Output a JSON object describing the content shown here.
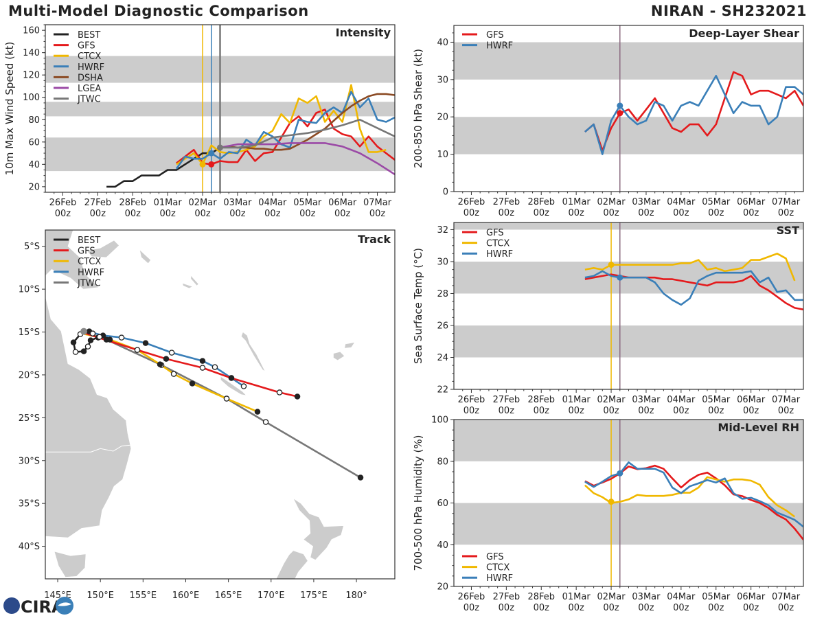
{
  "header": {
    "title": "Multi-Model Diagnostic Comparison",
    "storm": "NIRAN - SH232021"
  },
  "logo": "CIRA",
  "colors": {
    "BEST": "#222222",
    "GFS": "#e41a1c",
    "CTCX": "#f0b800",
    "HWRF": "#3a7fb8",
    "DSHA": "#8b4a23",
    "LGEA": "#9b4aa6",
    "JTWC": "#777777",
    "band": "#cccccc",
    "init": "#8a6a80"
  },
  "chart_data": [
    {
      "type": "line",
      "title": "Intensity",
      "ylabel": "10m Max Wind Speed (kt)",
      "ylim": [
        15,
        165
      ],
      "yticks": [
        20,
        40,
        60,
        80,
        100,
        120,
        140,
        160
      ],
      "xticks": [
        "26Feb 00z",
        "27Feb 00z",
        "28Feb 00z",
        "01Mar 00z",
        "02Mar 00z",
        "03Mar 00z",
        "04Mar 00z",
        "05Mar 00z",
        "06Mar 00z",
        "07Mar 00z"
      ],
      "shaded_bands": [
        [
          34,
          64
        ],
        [
          83,
          96
        ],
        [
          113,
          137
        ]
      ],
      "legend_placement": "top-left",
      "init_lines": [
        {
          "time": "02Mar 00z",
          "model": "CTCX"
        },
        {
          "time": "02Mar 06z",
          "model": "HWRF"
        },
        {
          "time": "02Mar 12z",
          "model": "JTWC"
        }
      ],
      "markers": [
        {
          "model": "CTCX",
          "time": "02Mar 00z",
          "value": 40
        },
        {
          "model": "GFS",
          "time": "02Mar 06z",
          "value": 40
        },
        {
          "model": "HWRF",
          "time": "02Mar 06z",
          "value": 50
        },
        {
          "model": "JTWC",
          "time": "02Mar 12z",
          "value": 55
        }
      ],
      "times": [
        "27Feb 06z",
        "27Feb 12z",
        "27Feb 18z",
        "28Feb 00z",
        "28Feb 06z",
        "28Feb 12z",
        "28Feb 18z",
        "01Mar 00z",
        "01Mar 06z",
        "01Mar 12z",
        "01Mar 18z",
        "02Mar 00z",
        "02Mar 06z",
        "02Mar 12z",
        "02Mar 18z",
        "03Mar 00z",
        "03Mar 06z",
        "03Mar 12z",
        "03Mar 18z",
        "04Mar 00z",
        "04Mar 06z",
        "04Mar 12z",
        "04Mar 18z",
        "05Mar 00z",
        "05Mar 06z",
        "05Mar 12z",
        "05Mar 18z",
        "06Mar 00z",
        "06Mar 06z",
        "06Mar 12z",
        "06Mar 18z",
        "07Mar 00z",
        "07Mar 06z",
        "07Mar 12z"
      ],
      "series": [
        {
          "name": "BEST",
          "values": [
            20,
            20,
            25,
            25,
            30,
            30,
            30,
            35,
            35,
            40,
            45,
            50,
            50,
            55,
            null,
            null,
            null,
            null,
            null,
            null,
            null,
            null,
            null,
            null,
            null,
            null,
            null,
            null,
            null,
            null,
            null,
            null,
            null,
            null
          ]
        },
        {
          "name": "GFS",
          "values": [
            null,
            null,
            null,
            null,
            null,
            null,
            null,
            null,
            41,
            47,
            53,
            41,
            40,
            43,
            42,
            42,
            53,
            43,
            50,
            51,
            64,
            77,
            83,
            74,
            86,
            89,
            72,
            67,
            65,
            56,
            65,
            56,
            50,
            44
          ]
        },
        {
          "name": "CTCX",
          "values": [
            null,
            null,
            null,
            null,
            null,
            null,
            null,
            null,
            40,
            45,
            50,
            40,
            57,
            51,
            50,
            51,
            53,
            56,
            65,
            70,
            85,
            77,
            99,
            95,
            101,
            78,
            88,
            78,
            111,
            72,
            51,
            51,
            53,
            null
          ]
        },
        {
          "name": "HWRF",
          "values": [
            null,
            null,
            null,
            null,
            null,
            null,
            null,
            null,
            36,
            47,
            45,
            45,
            50,
            45,
            51,
            50,
            62,
            57,
            69,
            65,
            58,
            55,
            80,
            78,
            77,
            86,
            91,
            86,
            105,
            91,
            99,
            80,
            78,
            82
          ]
        },
        {
          "name": "DSHA",
          "values": [
            null,
            null,
            null,
            null,
            null,
            null,
            null,
            null,
            null,
            null,
            null,
            null,
            null,
            55,
            56,
            55,
            55,
            54,
            54,
            53,
            53,
            54,
            58,
            62,
            67,
            72,
            79,
            86,
            92,
            97,
            101,
            103,
            103,
            102
          ]
        },
        {
          "name": "LGEA",
          "values": [
            null,
            null,
            null,
            null,
            null,
            null,
            null,
            null,
            null,
            null,
            null,
            null,
            null,
            55,
            null,
            58,
            null,
            58,
            null,
            58,
            null,
            59,
            null,
            59,
            null,
            59,
            null,
            56,
            null,
            50,
            null,
            41,
            null,
            31
          ]
        },
        {
          "name": "JTWC",
          "values": [
            null,
            null,
            null,
            null,
            null,
            null,
            null,
            null,
            null,
            null,
            null,
            null,
            null,
            55,
            null,
            55,
            null,
            57,
            null,
            64,
            null,
            66,
            null,
            68,
            null,
            71,
            null,
            75,
            null,
            80,
            null,
            null,
            null,
            65
          ]
        }
      ]
    },
    {
      "type": "line",
      "title": "Deep-Layer Shear",
      "ylabel": "200-850 hPa Shear (kt)",
      "ylim": [
        0,
        44.5
      ],
      "yticks": [
        0,
        10,
        20,
        30,
        40
      ],
      "xticks": [
        "26Feb 00z",
        "27Feb 00z",
        "28Feb 00z",
        "01Mar 00z",
        "02Mar 00z",
        "03Mar 00z",
        "04Mar 00z",
        "05Mar 00z",
        "06Mar 00z",
        "07Mar 00z"
      ],
      "shaded_bands": [
        [
          10,
          20
        ],
        [
          30,
          40
        ]
      ],
      "legend_placement": "top-left",
      "init_lines": [
        {
          "time": "02Mar 06z",
          "model": "init"
        }
      ],
      "markers": [
        {
          "model": "GFS",
          "time": "02Mar 06z",
          "value": 21
        },
        {
          "model": "HWRF",
          "time": "02Mar 06z",
          "value": 23
        }
      ],
      "times": [
        "01Mar 06z",
        "01Mar 12z",
        "01Mar 18z",
        "02Mar 00z",
        "02Mar 06z",
        "02Mar 12z",
        "02Mar 18z",
        "03Mar 00z",
        "03Mar 06z",
        "03Mar 12z",
        "03Mar 18z",
        "04Mar 00z",
        "04Mar 06z",
        "04Mar 12z",
        "04Mar 18z",
        "05Mar 00z",
        "05Mar 06z",
        "05Mar 12z",
        "05Mar 18z",
        "06Mar 00z",
        "06Mar 06z",
        "06Mar 12z",
        "06Mar 18z",
        "07Mar 00z",
        "07Mar 06z",
        "07Mar 12z"
      ],
      "series": [
        {
          "name": "GFS",
          "values": [
            16,
            18,
            11,
            17,
            21,
            22,
            19,
            22,
            25,
            21,
            17,
            16,
            18,
            18,
            15,
            18,
            25,
            32,
            31,
            26,
            27,
            27,
            26,
            25,
            27,
            23
          ]
        },
        {
          "name": "HWRF",
          "values": [
            16,
            18,
            10,
            19,
            23,
            20,
            18,
            19,
            24,
            23,
            19,
            23,
            24,
            23,
            27,
            31,
            26,
            21,
            24,
            23,
            23,
            18,
            20,
            28,
            28,
            26
          ]
        }
      ]
    },
    {
      "type": "line",
      "title": "SST",
      "ylabel": "Sea Surface Temp (°C)",
      "ylim": [
        22,
        32.45
      ],
      "yticks": [
        22,
        24,
        26,
        28,
        30,
        32
      ],
      "xticks": [
        "26Feb 00z",
        "27Feb 00z",
        "28Feb 00z",
        "01Mar 00z",
        "02Mar 00z",
        "03Mar 00z",
        "04Mar 00z",
        "05Mar 00z",
        "06Mar 00z",
        "07Mar 00z"
      ],
      "shaded_bands": [
        [
          24,
          26
        ],
        [
          28,
          30
        ],
        [
          32,
          34
        ]
      ],
      "legend_placement": "top-left",
      "init_lines": [
        {
          "time": "02Mar 00z",
          "model": "CTCX"
        },
        {
          "time": "02Mar 06z",
          "model": "init"
        }
      ],
      "markers": [
        {
          "model": "CTCX",
          "time": "02Mar 00z",
          "value": 29.8
        },
        {
          "model": "HWRF",
          "time": "02Mar 06z",
          "value": 29.0
        }
      ],
      "times": [
        "01Mar 06z",
        "01Mar 12z",
        "01Mar 18z",
        "02Mar 00z",
        "02Mar 06z",
        "02Mar 12z",
        "02Mar 18z",
        "03Mar 00z",
        "03Mar 06z",
        "03Mar 12z",
        "03Mar 18z",
        "04Mar 00z",
        "04Mar 06z",
        "04Mar 12z",
        "04Mar 18z",
        "05Mar 00z",
        "05Mar 06z",
        "05Mar 12z",
        "05Mar 18z",
        "06Mar 00z",
        "06Mar 06z",
        "06Mar 12z",
        "06Mar 18z",
        "07Mar 00z",
        "07Mar 06z",
        "07Mar 12z"
      ],
      "series": [
        {
          "name": "GFS",
          "values": [
            28.9,
            29.0,
            29.1,
            29.2,
            29.1,
            29.0,
            29.0,
            29.0,
            29.0,
            28.9,
            28.9,
            28.8,
            28.7,
            28.6,
            28.5,
            28.7,
            28.7,
            28.7,
            28.8,
            29.1,
            28.5,
            28.2,
            27.8,
            27.4,
            27.1,
            27.0
          ]
        },
        {
          "name": "CTCX",
          "values": [
            29.5,
            29.6,
            29.5,
            29.8,
            29.8,
            29.8,
            29.8,
            29.8,
            29.8,
            29.8,
            29.8,
            29.9,
            29.9,
            30.1,
            29.5,
            29.6,
            29.4,
            29.5,
            29.6,
            30.1,
            30.1,
            30.3,
            30.5,
            30.2,
            28.8,
            null
          ]
        },
        {
          "name": "HWRF",
          "values": [
            29.0,
            29.1,
            29.4,
            29.1,
            29.0,
            29.0,
            29.0,
            29.0,
            28.7,
            28.0,
            27.6,
            27.3,
            27.7,
            28.8,
            29.1,
            29.3,
            29.3,
            29.3,
            29.3,
            29.4,
            28.7,
            29.0,
            28.1,
            28.2,
            27.6,
            27.6
          ]
        }
      ]
    },
    {
      "type": "line",
      "title": "Mid-Level RH",
      "ylabel": "700-500 hPa Humidity (%)",
      "ylim": [
        20,
        100
      ],
      "yticks": [
        20,
        40,
        60,
        80,
        100
      ],
      "xticks": [
        "26Feb 00z",
        "27Feb 00z",
        "28Feb 00z",
        "01Mar 00z",
        "02Mar 00z",
        "03Mar 00z",
        "04Mar 00z",
        "05Mar 00z",
        "06Mar 00z",
        "07Mar 00z"
      ],
      "shaded_bands": [
        [
          40,
          60
        ],
        [
          80,
          100
        ]
      ],
      "legend_placement": "bottom-left",
      "init_lines": [
        {
          "time": "02Mar 00z",
          "model": "CTCX"
        },
        {
          "time": "02Mar 06z",
          "model": "init"
        }
      ],
      "markers": [
        {
          "model": "CTCX",
          "time": "02Mar 00z",
          "value": 60.6
        },
        {
          "model": "HWRF",
          "time": "02Mar 06z",
          "value": 74.2
        }
      ],
      "times": [
        "01Mar 06z",
        "01Mar 12z",
        "01Mar 18z",
        "02Mar 00z",
        "02Mar 06z",
        "02Mar 12z",
        "02Mar 18z",
        "03Mar 00z",
        "03Mar 06z",
        "03Mar 12z",
        "03Mar 18z",
        "04Mar 00z",
        "04Mar 06z",
        "04Mar 12z",
        "04Mar 18z",
        "05Mar 00z",
        "05Mar 06z",
        "05Mar 12z",
        "05Mar 18z",
        "06Mar 00z",
        "06Mar 06z",
        "06Mar 12z",
        "06Mar 18z",
        "07Mar 00z",
        "07Mar 06z",
        "07Mar 12z"
      ],
      "series": [
        {
          "name": "GFS",
          "values": [
            70.5,
            68.3,
            69.8,
            71.6,
            74.2,
            77.5,
            76.2,
            76.7,
            77.9,
            76.4,
            71.8,
            67.4,
            71.0,
            73.5,
            74.6,
            71.8,
            68.5,
            64.1,
            63.3,
            61.4,
            60.0,
            57.6,
            54.3,
            52.1,
            47.7,
            42.4
          ]
        },
        {
          "name": "CTCX",
          "values": [
            68.5,
            64.7,
            62.8,
            60.0,
            60.6,
            61.7,
            63.9,
            63.4,
            63.4,
            63.4,
            63.9,
            64.9,
            64.9,
            67.4,
            72.4,
            71.3,
            70.2,
            71.3,
            71.3,
            70.7,
            68.8,
            62.8,
            58.9,
            56.5,
            53.4,
            null
          ]
        },
        {
          "name": "HWRF",
          "values": [
            70.2,
            67.7,
            70.2,
            72.9,
            74.2,
            79.5,
            76.4,
            76.4,
            76.4,
            74.6,
            67.4,
            64.7,
            68.0,
            69.4,
            71.0,
            69.8,
            71.8,
            64.7,
            62.0,
            62.5,
            60.9,
            58.9,
            55.4,
            53.7,
            51.9,
            48.6
          ]
        }
      ]
    },
    {
      "type": "map",
      "title": "Track",
      "legend_placement": "top-left",
      "lon_range": [
        143.55,
        184.5
      ],
      "lat_range": [
        -43.8,
        -3.1
      ],
      "lon_ticks": [
        {
          "v": 145,
          "label": "145°E"
        },
        {
          "v": 150,
          "label": "150°E"
        },
        {
          "v": 155,
          "label": "155°E"
        },
        {
          "v": 160,
          "label": "160°E"
        },
        {
          "v": 165,
          "label": "165°E"
        },
        {
          "v": 170,
          "label": "170°E"
        },
        {
          "v": 175,
          "label": "175°E"
        },
        {
          "v": 180,
          "label": "180°"
        }
      ],
      "lat_ticks": [
        {
          "v": -5,
          "label": "5°S"
        },
        {
          "v": -10,
          "label": "10°S"
        },
        {
          "v": -15,
          "label": "15°S"
        },
        {
          "v": -20,
          "label": "20°S"
        },
        {
          "v": -25,
          "label": "25°S"
        },
        {
          "v": -30,
          "label": "30°S"
        },
        {
          "v": -35,
          "label": "35°S"
        },
        {
          "v": -40,
          "label": "40°S"
        }
      ],
      "tracks": [
        {
          "name": "BEST",
          "lon": [
            149.9,
            148.86,
            148.54,
            148.06,
            147.09,
            146.85,
            147.65,
            148.7,
            149.1
          ],
          "lat": [
            -15.57,
            -15.97,
            -16.69,
            -17.25,
            -17.33,
            -16.21,
            -15.25,
            -14.93,
            -15.17
          ]
        },
        {
          "name": "GFS",
          "lon": [
            148.06,
            149.75,
            154.33,
            157.71,
            161.97,
            165.35,
            170.99,
            173.08
          ],
          "lat": [
            -15.09,
            -15.65,
            -17.09,
            -18.13,
            -19.17,
            -20.37,
            -22.05,
            -22.53
          ]
        },
        {
          "name": "CTCX",
          "lon": [
            147.49,
            151.11,
            154.33,
            156.99,
            158.6,
            160.77,
            164.79,
            168.41
          ],
          "lat": [
            -15.09,
            -15.89,
            -17.09,
            -18.77,
            -19.89,
            -21.01,
            -22.77,
            -24.3
          ]
        },
        {
          "name": "HWRF",
          "lon": [
            147.9,
            150.31,
            152.48,
            155.3,
            158.36,
            161.97,
            163.42,
            165.35,
            166.8
          ],
          "lat": [
            -14.77,
            -15.41,
            -15.65,
            -16.29,
            -17.41,
            -18.37,
            -19.09,
            -20.37,
            -21.33
          ]
        },
        {
          "name": "JTWC",
          "lon": [
            148.06,
            150.71,
            157.15,
            164.79,
            169.38,
            180.48
          ],
          "lat": [
            -14.93,
            -15.89,
            -18.85,
            -22.77,
            -25.5,
            -31.98
          ]
        }
      ]
    }
  ]
}
